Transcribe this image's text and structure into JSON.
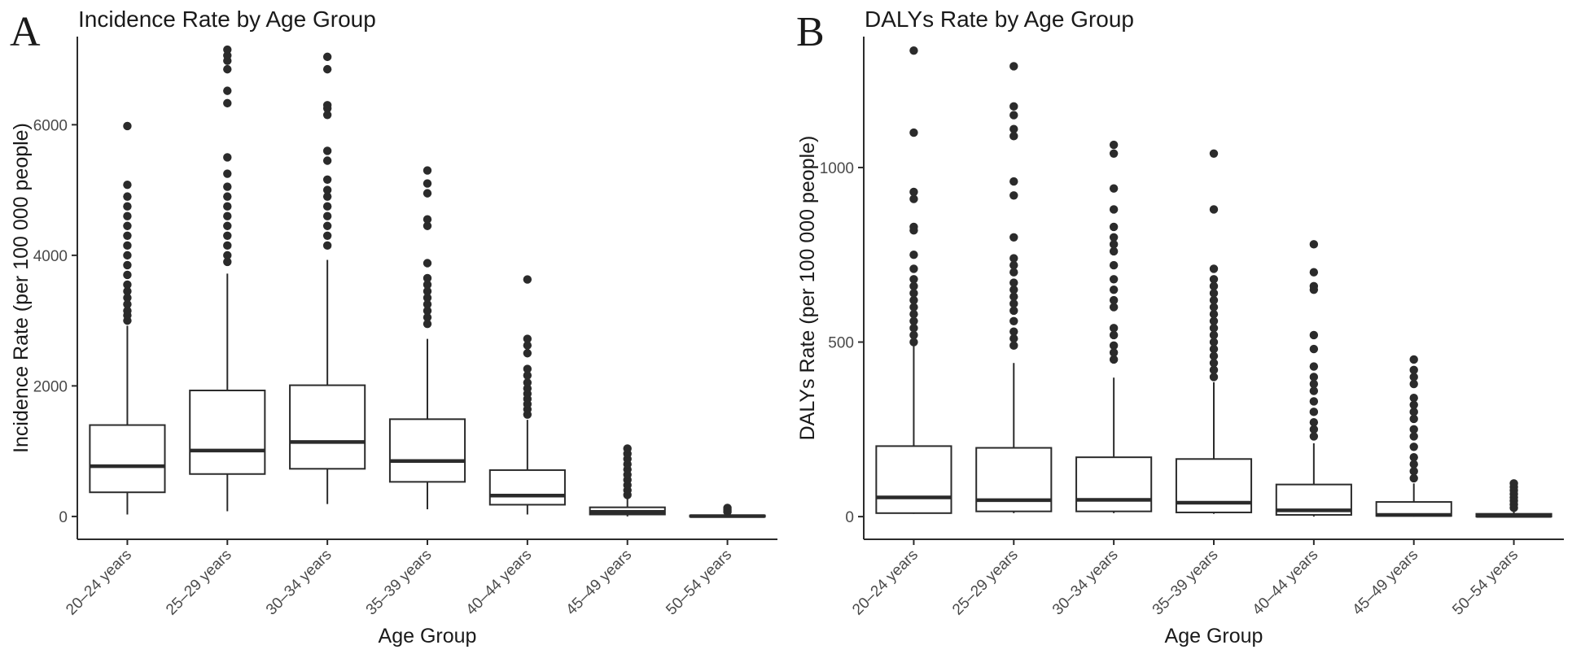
{
  "chart_data": [
    {
      "type": "boxplot",
      "panel_label": "A",
      "title": "Incidence Rate by Age Group",
      "xlabel": "Age Group",
      "ylabel": "Incidence Rate (per 100 000 people)",
      "ylim": [
        -350,
        7350
      ],
      "yticks": [
        0,
        2000,
        4000,
        6000
      ],
      "grid": false,
      "categories": [
        "20–24 years",
        "25–29 years",
        "30–34 years",
        "35–39 years",
        "40–44 years",
        "45–49 years",
        "50–54 years"
      ],
      "boxes": [
        {
          "category": "20–24 years",
          "whisker_low": 30,
          "q1": 370,
          "median": 770,
          "q3": 1400,
          "whisker_high": 2920,
          "outliers": [
            3000,
            3080,
            3150,
            3250,
            3350,
            3450,
            3550,
            3700,
            3850,
            4000,
            4150,
            4300,
            4450,
            4600,
            4750,
            4900,
            5080,
            5980
          ]
        },
        {
          "category": "25–29 years",
          "whisker_low": 80,
          "q1": 650,
          "median": 1010,
          "q3": 1930,
          "whisker_high": 3720,
          "outliers": [
            3900,
            4000,
            4150,
            4300,
            4450,
            4600,
            4750,
            4900,
            5050,
            5250,
            5500,
            6330,
            6520,
            6850,
            6980,
            7060,
            7150
          ]
        },
        {
          "category": "30–34 years",
          "whisker_low": 190,
          "q1": 730,
          "median": 1140,
          "q3": 2010,
          "whisker_high": 3930,
          "outliers": [
            4150,
            4300,
            4450,
            4600,
            4750,
            4900,
            5000,
            5160,
            5450,
            5600,
            6150,
            6250,
            6300,
            6850,
            7040
          ]
        },
        {
          "category": "35–39 years",
          "whisker_low": 110,
          "q1": 530,
          "median": 850,
          "q3": 1490,
          "whisker_high": 2720,
          "outliers": [
            2950,
            3050,
            3150,
            3250,
            3350,
            3450,
            3550,
            3650,
            3880,
            4450,
            4550,
            4950,
            5100,
            5300
          ]
        },
        {
          "category": "40–44 years",
          "whisker_low": 30,
          "q1": 180,
          "median": 320,
          "q3": 710,
          "whisker_high": 1480,
          "outliers": [
            1560,
            1640,
            1720,
            1800,
            1880,
            1960,
            2050,
            2160,
            2260,
            2500,
            2620,
            2720,
            3630
          ]
        },
        {
          "category": "45–49 years",
          "whisker_low": 0,
          "q1": 30,
          "median": 70,
          "q3": 140,
          "whisker_high": 300,
          "outliers": [
            330,
            400,
            480,
            560,
            640,
            720,
            800,
            880,
            960,
            1040
          ]
        },
        {
          "category": "50–54 years",
          "whisker_low": 0,
          "q1": 0,
          "median": 5,
          "q3": 15,
          "whisker_high": 40,
          "outliers": [
            70,
            100,
            130
          ]
        }
      ]
    },
    {
      "type": "boxplot",
      "panel_label": "B",
      "title": "DALYs Rate by Age Group",
      "xlabel": "Age Group",
      "ylabel": "DALYs Rate (per 100 000 people)",
      "ylim": [
        -65,
        1375
      ],
      "yticks": [
        0,
        500,
        1000
      ],
      "grid": false,
      "categories": [
        "20–24 years",
        "25–29 years",
        "30–34 years",
        "35–39 years",
        "40–44 years",
        "45–49 years",
        "50–54 years"
      ],
      "boxes": [
        {
          "category": "20–24 years",
          "whisker_low": 8,
          "q1": 10,
          "median": 55,
          "q3": 202,
          "whisker_high": 490,
          "outliers": [
            500,
            520,
            540,
            560,
            580,
            600,
            620,
            640,
            660,
            680,
            710,
            750,
            820,
            830,
            910,
            930,
            1100,
            1335
          ]
        },
        {
          "category": "25–29 years",
          "whisker_low": 10,
          "q1": 15,
          "median": 47,
          "q3": 197,
          "whisker_high": 440,
          "outliers": [
            490,
            510,
            530,
            560,
            590,
            610,
            630,
            650,
            670,
            700,
            720,
            740,
            800,
            920,
            960,
            1090,
            1110,
            1150,
            1175,
            1290
          ]
        },
        {
          "category": "30–34 years",
          "whisker_low": 10,
          "q1": 15,
          "median": 48,
          "q3": 170,
          "whisker_high": 398,
          "outliers": [
            450,
            470,
            490,
            520,
            540,
            600,
            620,
            650,
            680,
            720,
            760,
            780,
            800,
            830,
            880,
            940,
            1040,
            1065
          ]
        },
        {
          "category": "35–39 years",
          "whisker_low": 8,
          "q1": 12,
          "median": 40,
          "q3": 165,
          "whisker_high": 385,
          "outliers": [
            400,
            420,
            440,
            460,
            480,
            500,
            520,
            540,
            560,
            580,
            600,
            620,
            640,
            660,
            680,
            710,
            880,
            1040
          ]
        },
        {
          "category": "40–44 years",
          "whisker_low": 0,
          "q1": 5,
          "median": 18,
          "q3": 92,
          "whisker_high": 210,
          "outliers": [
            230,
            250,
            270,
            300,
            330,
            360,
            380,
            400,
            430,
            480,
            520,
            650,
            660,
            700,
            780
          ]
        },
        {
          "category": "45–49 years",
          "whisker_low": 0,
          "q1": 2,
          "median": 5,
          "q3": 42,
          "whisker_high": 95,
          "outliers": [
            110,
            130,
            150,
            170,
            200,
            230,
            250,
            280,
            300,
            320,
            340,
            380,
            400,
            420,
            450
          ]
        },
        {
          "category": "50–54 years",
          "whisker_low": 0,
          "q1": 0,
          "median": 2,
          "q3": 8,
          "whisker_high": 20,
          "outliers": [
            25,
            35,
            45,
            55,
            65,
            75,
            85,
            95
          ]
        }
      ]
    }
  ]
}
